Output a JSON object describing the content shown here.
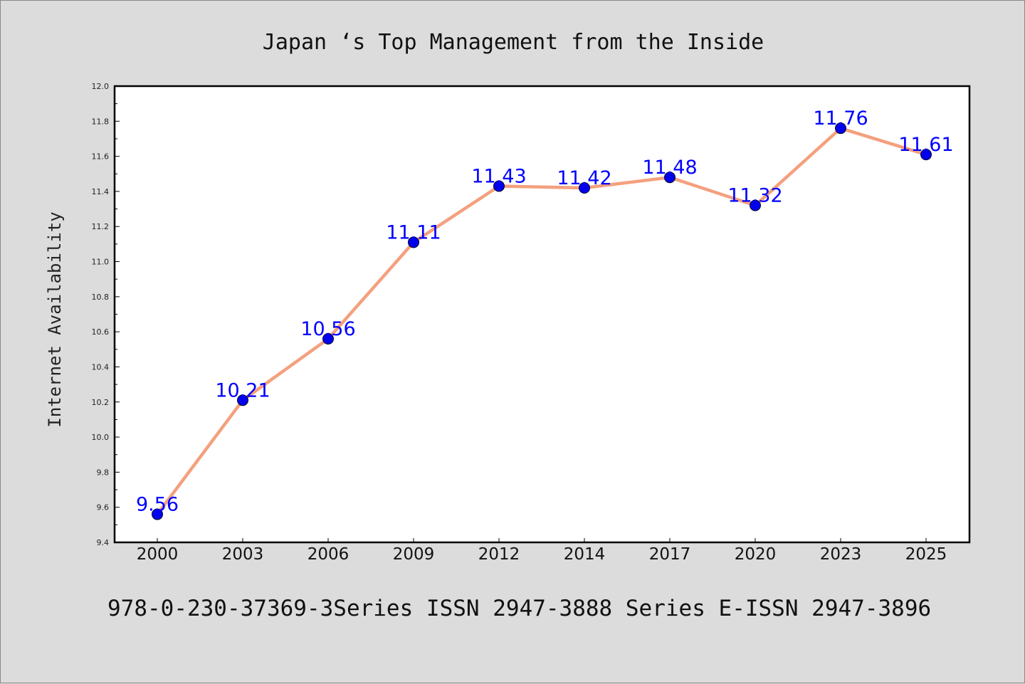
{
  "chart_data": {
    "type": "line",
    "title": "Japan ‘s Top Management from the Inside",
    "ylabel": "Internet Availability",
    "xlabel": "",
    "footer": "978-0-230-37369-3Series ISSN 2947-3888 Series E-ISSN 2947-3896",
    "categories": [
      "2000",
      "2003",
      "2006",
      "2009",
      "2012",
      "2014",
      "2017",
      "2020",
      "2023",
      "2025"
    ],
    "values": [
      9.56,
      10.21,
      10.56,
      11.11,
      11.43,
      11.42,
      11.48,
      11.32,
      11.76,
      11.61
    ],
    "data_labels": [
      "9.56",
      "10.21",
      "10.56",
      "11.11",
      "11.43",
      "11.42",
      "11.48",
      "11.32",
      "11.76",
      "11.61"
    ],
    "ylim": [
      9.4,
      12.0
    ],
    "yticks": [
      "9.4",
      "9.6",
      "9.8",
      "10.0",
      "10.2",
      "10.4",
      "10.6",
      "10.8",
      "11.0",
      "11.2",
      "11.4",
      "11.6",
      "11.8",
      "12.0"
    ],
    "grid": false,
    "legend": "none",
    "line_color": "#f4a07e",
    "marker_color": "#0000ee",
    "label_color": "#0000ff",
    "background_color": "#dcdcdc",
    "plot_background_color": "#ffffff"
  }
}
